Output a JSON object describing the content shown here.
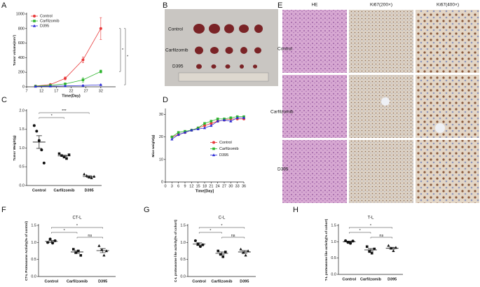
{
  "chart_data": [
    {
      "panel": "A",
      "type": "line",
      "xlabel": "Time(Day)",
      "ylabel": "Tumor volume(mm³)",
      "xlim": [
        7,
        37
      ],
      "xticks": [
        7,
        12,
        17,
        22,
        27,
        32
      ],
      "ylim": [
        0,
        1000
      ],
      "yticks": [
        0,
        200,
        400,
        600,
        800,
        1000
      ],
      "legend": "top-left",
      "series": [
        {
          "name": "Control",
          "color": "#e8393a",
          "marker": "circle",
          "x": [
            10,
            15,
            20,
            26,
            32
          ],
          "values": [
            10,
            30,
            115,
            370,
            800
          ],
          "errors": [
            2,
            8,
            20,
            40,
            150
          ]
        },
        {
          "name": "Carfilzomib",
          "color": "#2fb52f",
          "marker": "square",
          "x": [
            10,
            15,
            20,
            26,
            32
          ],
          "values": [
            8,
            20,
            40,
            95,
            210
          ],
          "errors": [
            2,
            5,
            10,
            30,
            20
          ]
        },
        {
          "name": "D395",
          "color": "#2b2bd6",
          "marker": "triangle",
          "x": [
            10,
            15,
            20,
            26,
            32
          ],
          "values": [
            5,
            8,
            12,
            18,
            28
          ],
          "errors": [
            1,
            2,
            3,
            4,
            5
          ]
        }
      ],
      "annotations": [
        {
          "text": "*",
          "between": [
            0,
            1
          ]
        },
        {
          "text": "*",
          "between": [
            0,
            2
          ]
        }
      ]
    },
    {
      "panel": "C",
      "type": "dot",
      "ylabel": "Tumor Weight(g)",
      "categories": [
        "Control",
        "Carfilzomib",
        "D395"
      ],
      "markers": [
        "circle",
        "square",
        "triangle"
      ],
      "color": "#111",
      "groups": [
        [
          1.6,
          1.45,
          1.2,
          0.95,
          0.6
        ],
        [
          0.85,
          0.8,
          0.76,
          0.72,
          0.82
        ],
        [
          0.3,
          0.26,
          0.22,
          0.2,
          0.24
        ]
      ],
      "means": [
        1.16,
        0.79,
        0.24
      ],
      "sems": [
        0.17,
        0.02,
        0.02
      ],
      "ylim": [
        0,
        2
      ],
      "yticks": [
        {
          "value": 0,
          "label": "0.0"
        },
        0.5,
        {
          "value": 1,
          "label": "1.0"
        },
        1.5,
        {
          "value": 2,
          "label": "2.0"
        }
      ],
      "annotations": [
        {
          "text": "*",
          "between": [
            0,
            1
          ]
        },
        {
          "text": "***",
          "between": [
            0,
            2
          ]
        }
      ]
    },
    {
      "panel": "D",
      "type": "line",
      "xlabel": "Time[Day]",
      "ylabel": "Mice weight(g)",
      "xlim": [
        0,
        36
      ],
      "xticks": [
        0,
        3,
        6,
        9,
        12,
        15,
        18,
        21,
        24,
        27,
        30,
        33,
        36
      ],
      "ylim": [
        0,
        32
      ],
      "yticks": [
        0,
        10,
        20,
        30
      ],
      "legend": "center-right",
      "series": [
        {
          "name": "Control",
          "color": "#e8393a",
          "marker": "circle",
          "x": [
            3,
            6,
            9,
            12,
            15,
            18,
            21,
            24,
            27,
            30,
            33,
            36
          ],
          "values": [
            20,
            21,
            22,
            23,
            24,
            25,
            26,
            27,
            27.5,
            28,
            28,
            28
          ]
        },
        {
          "name": "Carfilzomib",
          "color": "#2fb52f",
          "marker": "square",
          "x": [
            3,
            6,
            9,
            12,
            15,
            18,
            21,
            24,
            27,
            30,
            33,
            36
          ],
          "values": [
            20,
            22,
            22.5,
            23,
            24,
            26,
            27,
            28,
            28,
            28.5,
            29,
            29
          ]
        },
        {
          "name": "D395",
          "color": "#2b2bd6",
          "marker": "triangle",
          "x": [
            3,
            6,
            9,
            12,
            15,
            18,
            21,
            24,
            27,
            30,
            33,
            36
          ],
          "values": [
            19,
            21,
            22,
            23,
            23.5,
            24,
            25,
            27,
            27.5,
            27,
            28.5,
            28.5
          ]
        }
      ]
    },
    {
      "panel": "F",
      "type": "dot",
      "title": "CT-L",
      "ylabel": "CT-L Proteasome Activity(% of control)",
      "categories": [
        "Control",
        "Carfilzomib",
        "D395"
      ],
      "markers": [
        "circle",
        "square",
        "triangle"
      ],
      "color": "#111",
      "groups": [
        [
          1.0,
          1.1,
          0.98,
          1.05
        ],
        [
          0.8,
          0.7,
          0.75,
          0.62
        ],
        [
          0.9,
          0.78,
          0.62,
          0.75
        ]
      ],
      "means": [
        1.03,
        0.72,
        0.76
      ],
      "sems": [
        0.03,
        0.04,
        0.06
      ],
      "ylim": [
        0,
        1.5
      ],
      "yticks": [
        {
          "value": 0,
          "label": "0.0"
        },
        0.5,
        {
          "value": 1,
          "label": "1.0"
        },
        1.5
      ],
      "annotations": [
        {
          "text": "ns",
          "between": [
            1,
            2
          ]
        },
        {
          "text": "*",
          "between": [
            0,
            1
          ]
        },
        {
          "text": "*",
          "between": [
            0,
            2
          ]
        }
      ]
    },
    {
      "panel": "G",
      "type": "dot",
      "title": "C-L",
      "ylabel": "C-L proteasome like activity(% of cohort)",
      "categories": [
        "Control",
        "Carfilzomib",
        "D395"
      ],
      "markers": [
        "circle",
        "square",
        "triangle"
      ],
      "color": "#111",
      "groups": [
        [
          1.05,
          0.95,
          0.88,
          0.93
        ],
        [
          0.75,
          0.65,
          0.58,
          0.72
        ],
        [
          0.8,
          0.7,
          0.62,
          0.75
        ]
      ],
      "means": [
        0.95,
        0.68,
        0.72
      ],
      "sems": [
        0.04,
        0.04,
        0.04
      ],
      "ylim": [
        0,
        1.5
      ],
      "yticks": [
        {
          "value": 0,
          "label": "0.0"
        },
        0.5,
        {
          "value": 1,
          "label": "1.0"
        },
        1.5
      ],
      "annotations": [
        {
          "text": "ns",
          "between": [
            1,
            2
          ]
        },
        {
          "text": "*",
          "between": [
            0,
            1
          ]
        },
        {
          "text": "*",
          "between": [
            0,
            2
          ]
        }
      ]
    },
    {
      "panel": "H",
      "type": "dot",
      "title": "T-L",
      "ylabel": "T-L proteasome like activity(% of cohort)",
      "categories": [
        "Control",
        "Carfilzomib",
        "D395"
      ],
      "markers": [
        "circle",
        "square",
        "triangle"
      ],
      "color": "#111",
      "groups": [
        [
          1.03,
          0.98,
          0.95,
          1.02
        ],
        [
          0.85,
          0.7,
          0.65,
          0.78
        ],
        [
          0.88,
          0.8,
          0.72,
          0.82
        ]
      ],
      "means": [
        1.0,
        0.75,
        0.8
      ],
      "sems": [
        0.02,
        0.04,
        0.03
      ],
      "ylim": [
        0,
        1.5
      ],
      "yticks": [
        {
          "value": 0,
          "label": "0.0"
        },
        0.5,
        {
          "value": 1,
          "label": "1.0"
        },
        1.5
      ],
      "annotations": [
        {
          "text": "ns",
          "between": [
            1,
            2
          ]
        },
        {
          "text": "*",
          "between": [
            0,
            1
          ]
        },
        {
          "text": "*",
          "between": [
            0,
            2
          ]
        }
      ]
    }
  ],
  "photos": [
    {
      "panel": "B",
      "row_labels": [
        "Control",
        "Carfilzomib",
        "D395"
      ]
    },
    {
      "panel": "E",
      "column_labels": [
        "HE",
        "Ki67(200×)",
        "Ki67(400×)"
      ],
      "row_labels": [
        "Control",
        "Carfilzomib",
        "D395"
      ]
    }
  ]
}
